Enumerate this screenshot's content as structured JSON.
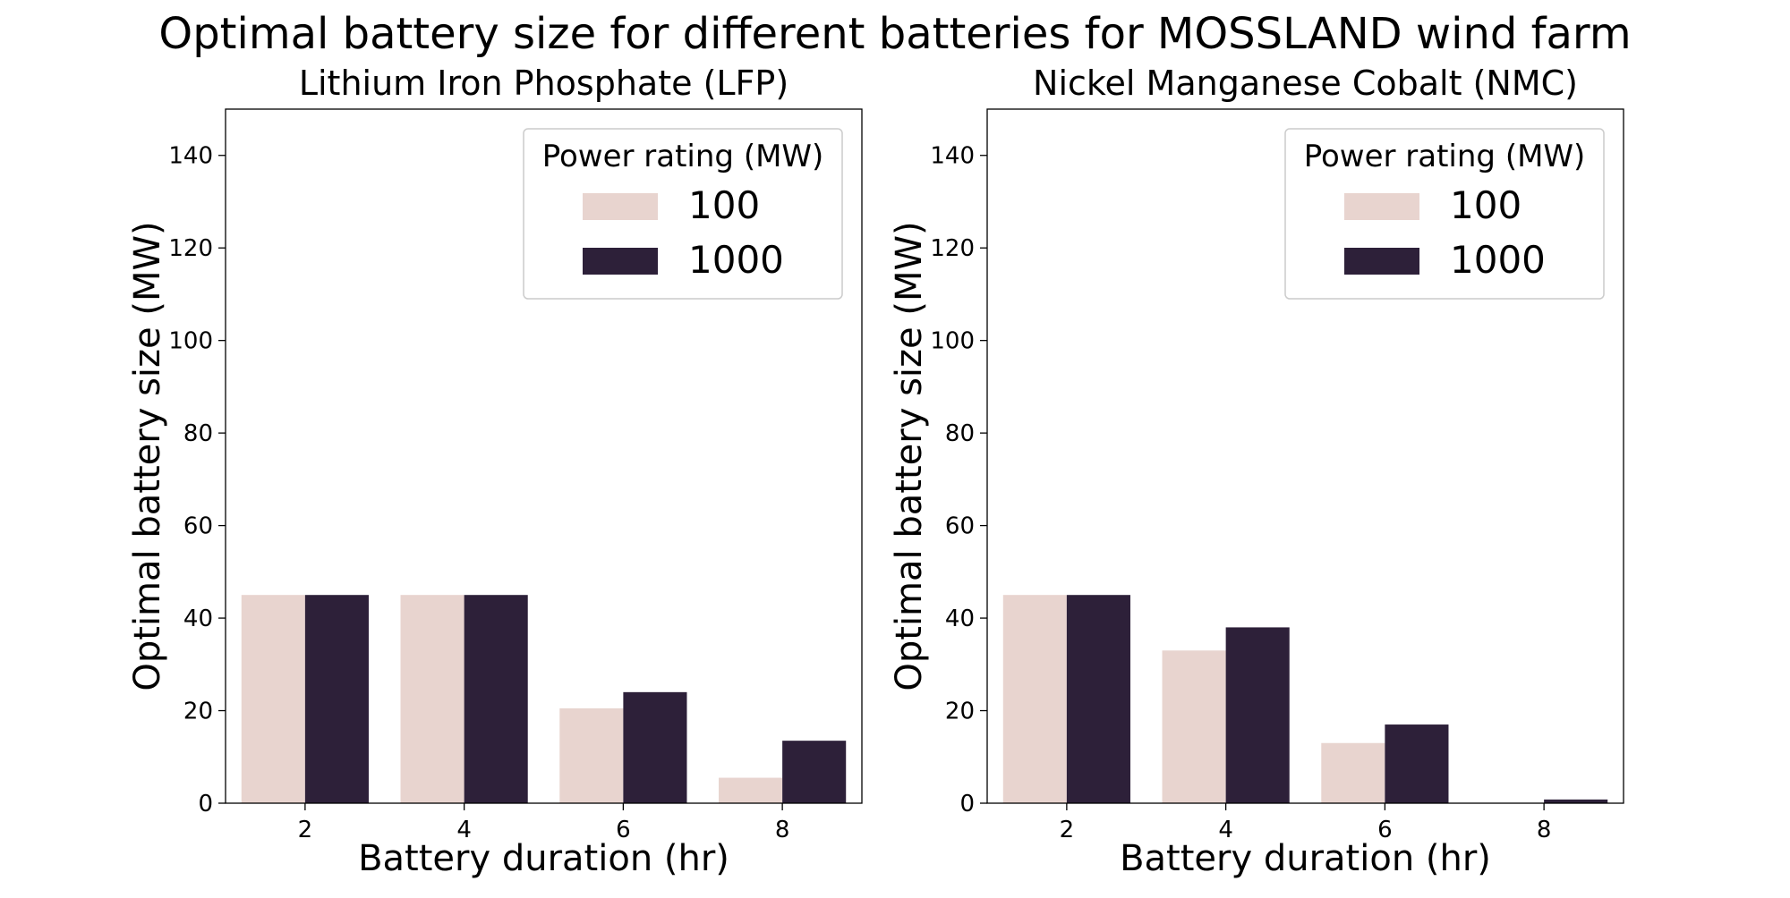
{
  "figure": {
    "title": "Optimal battery size for different batteries for MOSSLAND wind farm"
  },
  "colors": {
    "series_100": "#e8d4cf",
    "series_1000": "#2d2039",
    "axis": "#000000",
    "legend_border": "#cccccc"
  },
  "chart_data": [
    {
      "type": "bar",
      "title": "Lithium Iron Phosphate (LFP)",
      "xlabel": "Battery duration (hr)",
      "ylabel": "Optimal battery size (MW)",
      "categories": [
        "2",
        "4",
        "6",
        "8"
      ],
      "ylim": [
        0,
        150
      ],
      "yticks": [
        0,
        20,
        40,
        60,
        80,
        100,
        120,
        140
      ],
      "grid": false,
      "legend": {
        "title": "Power rating (MW)",
        "placement": "top-right"
      },
      "series": [
        {
          "name": "100",
          "values": [
            45,
            45,
            20.5,
            5.5
          ]
        },
        {
          "name": "1000",
          "values": [
            45,
            45,
            24,
            13.5
          ]
        }
      ]
    },
    {
      "type": "bar",
      "title": "Nickel Manganese Cobalt (NMC)",
      "xlabel": "Battery duration (hr)",
      "ylabel": "Optimal battery size (MW)",
      "categories": [
        "2",
        "4",
        "6",
        "8"
      ],
      "ylim": [
        0,
        150
      ],
      "yticks": [
        0,
        20,
        40,
        60,
        80,
        100,
        120,
        140
      ],
      "grid": false,
      "legend": {
        "title": "Power rating (MW)",
        "placement": "top-right"
      },
      "series": [
        {
          "name": "100",
          "values": [
            45,
            33,
            13,
            0
          ]
        },
        {
          "name": "1000",
          "values": [
            45,
            38,
            17,
            0.8
          ]
        }
      ]
    }
  ]
}
